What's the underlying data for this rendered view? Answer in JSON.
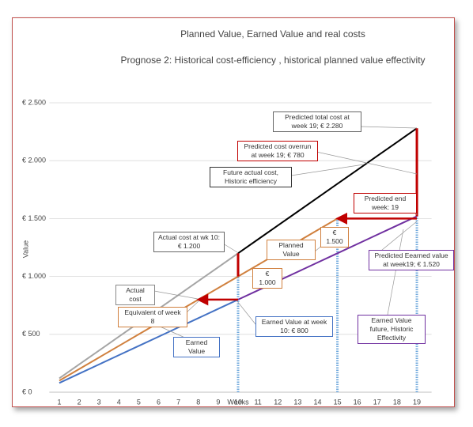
{
  "chart_data": {
    "type": "line",
    "title": "Planned Value,  Earned Value and real costs",
    "subtitle": "Prognose 2: Historical cost-efficiency , historical planned value effectivity",
    "x_label": "Weeks",
    "y_label": "Value",
    "x": [
      1,
      2,
      3,
      4,
      5,
      6,
      7,
      8,
      9,
      10,
      11,
      12,
      13,
      14,
      15,
      16,
      17,
      18,
      19
    ],
    "xlim": [
      0.5,
      19.5
    ],
    "ylim": [
      0,
      2500
    ],
    "yticks": [
      {
        "value": 0,
        "label": "€ 0"
      },
      {
        "value": 500,
        "label": "€ 500"
      },
      {
        "value": 1000,
        "label": "€ 1.000"
      },
      {
        "value": 1500,
        "label": "€ 1.500"
      },
      {
        "value": 2000,
        "label": "€ 2.000"
      },
      {
        "value": 2500,
        "label": "€ 2.500"
      }
    ],
    "grid": true,
    "series": [
      {
        "name": "Actual cost",
        "color": "#a5a5a5",
        "values": [
          120,
          240,
          360,
          480,
          600,
          720,
          840,
          960,
          1080,
          1200,
          null,
          null,
          null,
          null,
          null,
          null,
          null,
          null,
          null
        ]
      },
      {
        "name": "Future actual cost, Historic efficiency",
        "color": "#000000",
        "values": [
          null,
          null,
          null,
          null,
          null,
          null,
          null,
          null,
          null,
          1200,
          1320,
          1440,
          1560,
          1680,
          1800,
          1920,
          2040,
          2160,
          2280
        ]
      },
      {
        "name": "Planned Value",
        "color": "#d0803e",
        "values": [
          100,
          200,
          300,
          400,
          500,
          600,
          700,
          800,
          900,
          1000,
          1100,
          1200,
          1300,
          1400,
          1500,
          null,
          null,
          null,
          null
        ]
      },
      {
        "name": "Earned Value",
        "color": "#4472c4",
        "values": [
          80,
          160,
          240,
          320,
          400,
          480,
          560,
          640,
          720,
          800,
          null,
          null,
          null,
          null,
          null,
          null,
          null,
          null,
          null
        ]
      },
      {
        "name": "Earned Value future, Historic Effectivity",
        "color": "#7030a0",
        "values": [
          null,
          null,
          null,
          null,
          null,
          null,
          null,
          null,
          null,
          800,
          880,
          960,
          1040,
          1120,
          1200,
          1280,
          1360,
          1440,
          1520
        ]
      }
    ],
    "annotations": [
      "Predicted total cost at week 19;  € 2.280",
      "Predicted cost overrun at week 19;  € 780",
      "Predicted end week: 19",
      "€ 1.500",
      "Actual cost at wk 10: € 1.200",
      "€ 1.000",
      "Predicted Eearned value at week19;  € 1.520",
      "Equivalent of week 8",
      "Earned Value at week 10: € 800"
    ]
  }
}
